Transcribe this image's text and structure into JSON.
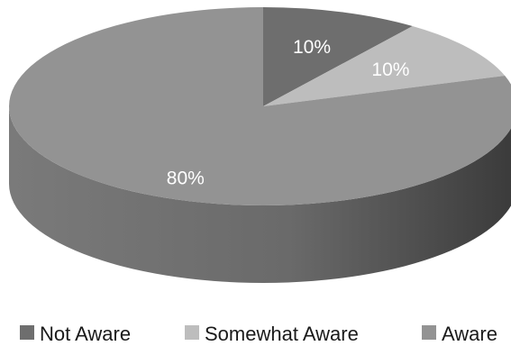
{
  "chart_data": {
    "type": "pie",
    "title": "",
    "categories": [
      "Not Aware",
      "Somewhat Aware",
      "Aware"
    ],
    "values": [
      10,
      10,
      80
    ],
    "value_labels": [
      "10%",
      "10%",
      "80%"
    ],
    "colors": [
      "#6e6e6e",
      "#bdbdbd",
      "#939393"
    ],
    "style": "3d",
    "legend_position": "bottom"
  }
}
